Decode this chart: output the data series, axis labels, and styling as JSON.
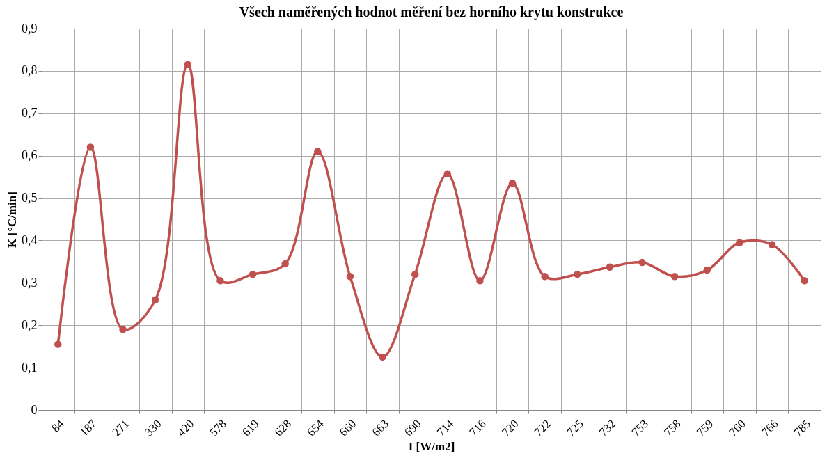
{
  "chart_data": {
    "type": "line",
    "title": "Všech naměřených hodnot měření bez horního krytu konstrukce",
    "xlabel": "I [W/m2]",
    "ylabel": "K [°C/min]",
    "categories": [
      "84",
      "187",
      "271",
      "330",
      "420",
      "578",
      "619",
      "628",
      "654",
      "660",
      "663",
      "690",
      "714",
      "716",
      "720",
      "722",
      "725",
      "732",
      "753",
      "758",
      "759",
      "760",
      "766",
      "785"
    ],
    "series": [
      {
        "color": "#c0504d",
        "values": [
          0.155,
          0.62,
          0.19,
          0.26,
          0.815,
          0.305,
          0.32,
          0.345,
          0.61,
          0.315,
          0.125,
          0.32,
          0.557,
          0.305,
          0.535,
          0.315,
          0.32,
          0.337,
          0.348,
          0.315,
          0.33,
          0.395,
          0.39,
          0.305
        ]
      }
    ],
    "ylim": [
      0,
      0.9
    ],
    "yticks": [
      {
        "value": 0,
        "label": "0"
      },
      {
        "value": 0.1,
        "label": "0,1"
      },
      {
        "value": 0.2,
        "label": "0,2"
      },
      {
        "value": 0.3,
        "label": "0,3"
      },
      {
        "value": 0.4,
        "label": "0,4"
      },
      {
        "value": 0.5,
        "label": "0,5"
      },
      {
        "value": 0.6,
        "label": "0,6"
      },
      {
        "value": 0.7,
        "label": "0,7"
      },
      {
        "value": 0.8,
        "label": "0,8"
      },
      {
        "value": 0.9,
        "label": "0,9"
      }
    ],
    "grid": true,
    "marker": "circle",
    "line_style": "solid"
  }
}
